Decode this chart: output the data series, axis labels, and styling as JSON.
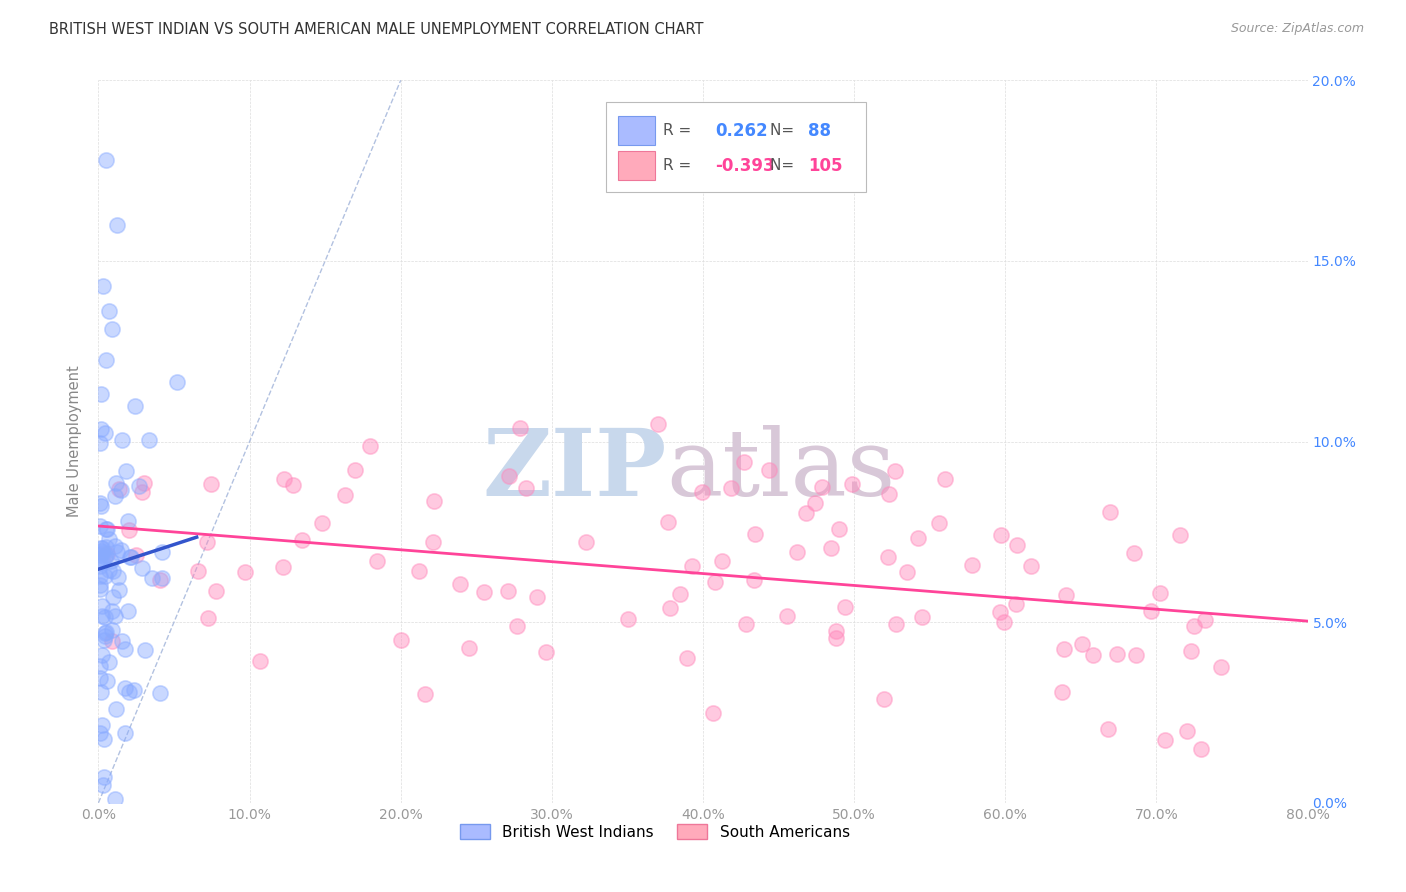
{
  "title": "BRITISH WEST INDIAN VS SOUTH AMERICAN MALE UNEMPLOYMENT CORRELATION CHART",
  "source": "Source: ZipAtlas.com",
  "ylabel": "Male Unemployment",
  "watermark_zip": "ZIP",
  "watermark_atlas": "atlas",
  "legend_label1": "British West Indians",
  "legend_label2": "South Americans",
  "R1": 0.262,
  "N1": 88,
  "R2": -0.393,
  "N2": 105,
  "color1": "#88aaff",
  "color2": "#ff88bb",
  "trendline1_color": "#3355cc",
  "trendline2_color": "#ff4499",
  "diagonal_color": "#aabbdd",
  "xmin": 0.0,
  "xmax": 0.8,
  "ymin": 0.0,
  "ymax": 0.2,
  "xticks": [
    0.0,
    0.1,
    0.2,
    0.3,
    0.4,
    0.5,
    0.6,
    0.7,
    0.8
  ],
  "yticks": [
    0.0,
    0.05,
    0.1,
    0.15,
    0.2
  ],
  "xtick_labels": [
    "0.0%",
    "10.0%",
    "20.0%",
    "30.0%",
    "40.0%",
    "50.0%",
    "60.0%",
    "70.0%",
    "80.0%"
  ],
  "ytick_labels_right": [
    "0.0%",
    "5.0%",
    "10.0%",
    "15.0%",
    "20.0%"
  ],
  "seed": 42
}
